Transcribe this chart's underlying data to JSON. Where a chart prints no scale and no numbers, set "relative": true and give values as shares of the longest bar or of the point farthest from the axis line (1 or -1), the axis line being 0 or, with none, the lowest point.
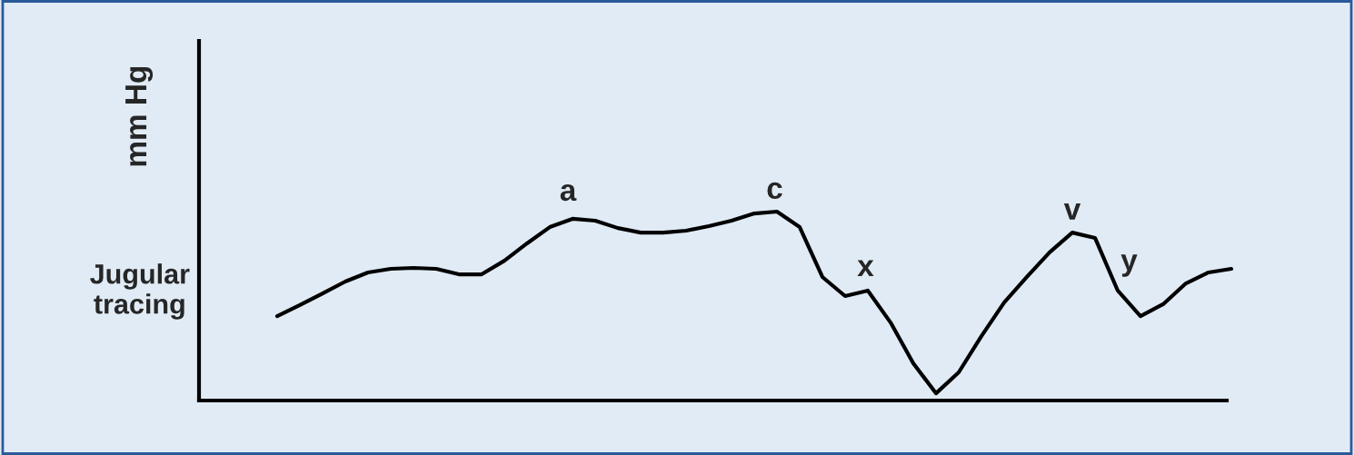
{
  "chart_data": {
    "type": "line",
    "relative": true,
    "ylabel": "mm Hg",
    "categories": [
      null,
      null,
      null,
      null,
      null,
      null,
      null,
      null,
      null,
      null,
      null,
      null,
      null,
      null,
      null,
      null,
      null,
      null,
      null,
      null,
      null,
      null,
      null,
      null,
      null,
      null,
      null,
      null,
      null,
      null,
      null,
      null,
      null,
      null,
      null,
      null,
      null,
      null,
      null,
      null,
      null,
      null,
      null
    ],
    "series": [
      {
        "name": "Jugular tracing",
        "color": "#000000",
        "values": [
          0.447,
          0.505,
          0.567,
          0.63,
          0.678,
          0.697,
          0.702,
          0.697,
          0.668,
          0.668,
          0.74,
          0.832,
          0.918,
          0.962,
          0.952,
          0.913,
          0.889,
          0.889,
          0.899,
          0.923,
          0.952,
          0.99,
          1,
          0.918,
          0.654,
          0.553,
          0.582,
          0.413,
          0.197,
          0.038,
          0.149,
          0.341,
          0.519,
          0.654,
          0.784,
          0.889,
          0.861,
          0.582,
          0.447,
          0.51,
          0.62,
          0.678,
          0.697
        ]
      }
    ],
    "annotations": [
      "a",
      "c",
      "x",
      "v",
      "y"
    ],
    "legend": false,
    "marker": "none",
    "line_style": "solid"
  }
}
